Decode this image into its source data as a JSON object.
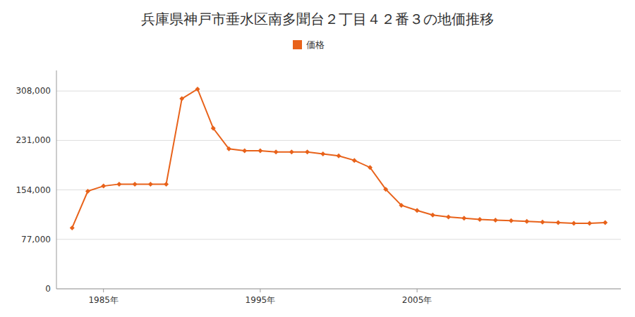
{
  "chart_data": {
    "type": "line",
    "title": "兵庫県神戸市垂水区南多聞台２丁目４２番３の地価推移",
    "x": [
      1983,
      1984,
      1985,
      1986,
      1987,
      1988,
      1989,
      1990,
      1991,
      1992,
      1993,
      1994,
      1995,
      1996,
      1997,
      1998,
      1999,
      2000,
      2001,
      2002,
      2003,
      2004,
      2005,
      2006,
      2007,
      2008,
      2009,
      2010,
      2011,
      2012,
      2013,
      2014,
      2015,
      2016,
      2017
    ],
    "series": [
      {
        "name": "価格",
        "color": "#e8621a",
        "marker": "diamond",
        "line_style": "solid",
        "values": [
          95000,
          152000,
          160000,
          163000,
          163000,
          163000,
          163000,
          296000,
          311000,
          250000,
          218000,
          215000,
          215000,
          213000,
          213000,
          213000,
          210000,
          207000,
          200000,
          189000,
          155000,
          130000,
          122000,
          115000,
          112000,
          110000,
          108000,
          107000,
          106000,
          105000,
          104000,
          103000,
          102000,
          102000,
          103000
        ]
      }
    ],
    "xlim": [
      1982,
      2018
    ],
    "xticks": [
      {
        "value": 1985,
        "label": "1985年"
      },
      {
        "value": 1995,
        "label": "1995年"
      },
      {
        "value": 2005,
        "label": "2005年"
      }
    ],
    "ylim": [
      0,
      340000
    ],
    "yticks": [
      0,
      {
        "value": 77000,
        "label": "77,000"
      },
      {
        "value": 154000,
        "label": "154,000"
      },
      {
        "value": 231000,
        "label": "231,000"
      },
      {
        "value": 308000,
        "label": "308,000"
      }
    ],
    "grid": true,
    "legend": "top"
  }
}
